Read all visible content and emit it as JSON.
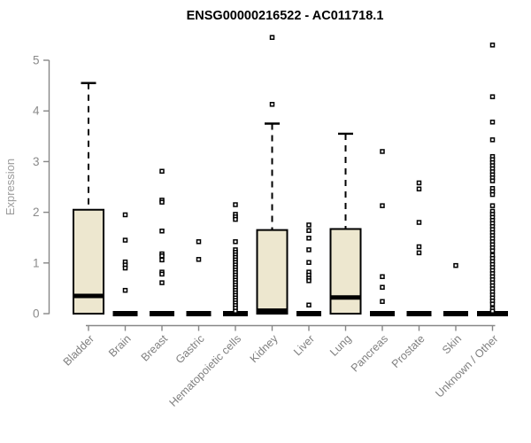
{
  "chart_data": {
    "type": "boxplot",
    "title": "ENSG00000216522 - AC011718.1",
    "xlabel": "",
    "ylabel": "Expression",
    "ylim": [
      0,
      5.5
    ],
    "yticks": [
      0,
      1,
      2,
      3,
      4,
      5
    ],
    "grid": false,
    "legend": "none",
    "categories": [
      "Bladder",
      "Brain",
      "Breast",
      "Gastric",
      "Hematopoietic cells",
      "Kidney",
      "Liver",
      "Lung",
      "Pancreas",
      "Prostate",
      "Skin",
      "Unknown / Other"
    ],
    "series": [
      {
        "name": "Bladder",
        "q1": 0,
        "median": 0.35,
        "q3": 2.05,
        "whisker_low": 0,
        "whisker_high": 4.55,
        "points": []
      },
      {
        "name": "Brain",
        "q1": 0,
        "median": 0,
        "q3": 0,
        "whisker_low": 0,
        "whisker_high": 0,
        "points": [
          1.95,
          1.45,
          1.02,
          0.96,
          0.9,
          0.46
        ]
      },
      {
        "name": "Breast",
        "q1": 0,
        "median": 0,
        "q3": 0,
        "whisker_low": 0,
        "whisker_high": 0,
        "points": [
          2.81,
          2.24,
          2.2,
          1.63,
          1.18,
          1.14,
          1.06,
          0.82,
          0.78,
          0.61
        ]
      },
      {
        "name": "Gastric",
        "q1": 0,
        "median": 0,
        "q3": 0,
        "whisker_low": 0,
        "whisker_high": 0,
        "points": [
          1.42,
          1.07
        ]
      },
      {
        "name": "Hematopoietic cells",
        "q1": 0,
        "median": 0,
        "q3": 0,
        "whisker_low": 0,
        "whisker_high": 0,
        "points": [
          2.15,
          1.96,
          1.91,
          1.86,
          1.42,
          1.26,
          1.21,
          1.16,
          1.11,
          1.06,
          1.01,
          0.96,
          0.91,
          0.86,
          0.81,
          0.76,
          0.71,
          0.66,
          0.61,
          0.56,
          0.51,
          0.46,
          0.41,
          0.36,
          0.31,
          0.26,
          0.21,
          0.16,
          0.11,
          0.05
        ]
      },
      {
        "name": "Kidney",
        "q1": 0,
        "median": 0.06,
        "q3": 1.65,
        "whisker_low": 0,
        "whisker_high": 3.75,
        "points": [
          5.45,
          4.13
        ]
      },
      {
        "name": "Liver",
        "q1": 0,
        "median": 0,
        "q3": 0,
        "whisker_low": 0,
        "whisker_high": 0,
        "points": [
          1.75,
          1.64,
          1.49,
          1.26,
          1.01,
          0.82,
          0.76,
          0.7,
          0.65,
          0.17
        ]
      },
      {
        "name": "Lung",
        "q1": 0,
        "median": 0.32,
        "q3": 1.67,
        "whisker_low": 0,
        "whisker_high": 3.55,
        "points": []
      },
      {
        "name": "Pancreas",
        "q1": 0,
        "median": 0,
        "q3": 0,
        "whisker_low": 0,
        "whisker_high": 0,
        "points": [
          3.2,
          2.13,
          0.73,
          0.52,
          0.24
        ]
      },
      {
        "name": "Prostate",
        "q1": 0,
        "median": 0,
        "q3": 0,
        "whisker_low": 0,
        "whisker_high": 0,
        "points": [
          2.58,
          2.46,
          1.8,
          1.32,
          1.2
        ]
      },
      {
        "name": "Skin",
        "q1": 0,
        "median": 0,
        "q3": 0,
        "whisker_low": 0,
        "whisker_high": 0,
        "points": [
          0.95
        ]
      },
      {
        "name": "Unknown / Other",
        "q1": 0,
        "median": 0,
        "q3": 0,
        "whisker_low": 0,
        "whisker_high": 0,
        "points": [
          5.3,
          4.28,
          3.78,
          3.43,
          3.1,
          3.04,
          2.98,
          2.92,
          2.86,
          2.8,
          2.74,
          2.68,
          2.62,
          2.47,
          2.41,
          2.35,
          2.13,
          2.02,
          1.96,
          1.9,
          1.84,
          1.78,
          1.72,
          1.66,
          1.6,
          1.54,
          1.48,
          1.42,
          1.36,
          1.3,
          1.24,
          1.15,
          1.09,
          1.03,
          0.97,
          0.91,
          0.85,
          0.79,
          0.73,
          0.67,
          0.61,
          0.55,
          0.49,
          0.43,
          0.37,
          0.31,
          0.25,
          0.19,
          0.1,
          0.05
        ]
      }
    ],
    "colors": {
      "box_fill": "#EDE7CF",
      "box_stroke": "#000000",
      "median": "#000000",
      "outlier": "#000000",
      "axis": "#878787",
      "tick_label": "#8a8a8a",
      "category_label": "#7f7f7f",
      "title": "#000000",
      "y_axis_label": "#9b9b9b",
      "background": "#ffffff"
    }
  }
}
